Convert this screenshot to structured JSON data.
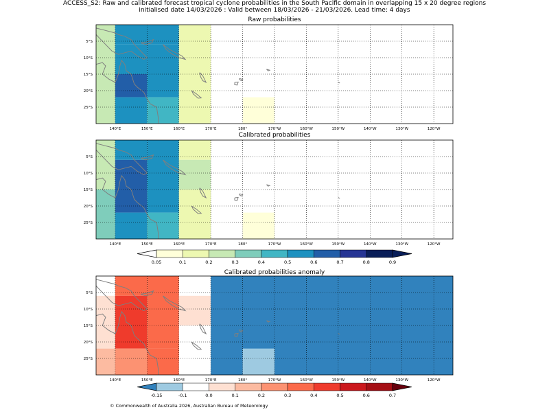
{
  "figure": {
    "title_line1": "ACCESS_S2: Raw and calibrated forecast tropical cyclone probabilities in the South Pacific domain in overlapping 15 x 20 degree regions",
    "title_line2": "initialised date 14/03/2026 :  Valid between 18/03/2026 - 21/03/2026. Lead time: 4 days",
    "copyright": "© Commonwealth of Australia 2026, Australian Bureau of Meteorology"
  },
  "chart_data": [
    {
      "type": "heatmap",
      "title": "Raw probabilities",
      "xlim": [
        134,
        246
      ],
      "ylim": [
        -30,
        0
      ],
      "grid": true,
      "x_tick_values": [
        140,
        150,
        160,
        170,
        180,
        190,
        200,
        210,
        220,
        230,
        240
      ],
      "x_tick_labels": [
        "140°E",
        "150°E",
        "160°E",
        "170°E",
        "180°",
        "170°W",
        "160°W",
        "150°W",
        "140°W",
        "130°W",
        "120°W"
      ],
      "y_tick_values": [
        -5,
        -10,
        -15,
        -20,
        -25
      ],
      "y_tick_labels": [
        "5°S",
        "10°S",
        "15°S",
        "20°S",
        "25°S"
      ],
      "cells": [
        {
          "lon": [
            134,
            140
          ],
          "lat": [
            -30,
            0
          ],
          "value": 0.25
        },
        {
          "lon": [
            140,
            160
          ],
          "lat": [
            -6,
            0
          ],
          "value": 0.5
        },
        {
          "lon": [
            140,
            150
          ],
          "lat": [
            -15,
            -6
          ],
          "value": 0.55
        },
        {
          "lon": [
            140,
            150
          ],
          "lat": [
            -22,
            -15
          ],
          "value": 0.65
        },
        {
          "lon": [
            140,
            150
          ],
          "lat": [
            -30,
            -22
          ],
          "value": 0.55
        },
        {
          "lon": [
            150,
            160
          ],
          "lat": [
            -22,
            -6
          ],
          "value": 0.55
        },
        {
          "lon": [
            150,
            160
          ],
          "lat": [
            -30,
            -22
          ],
          "value": 0.45
        },
        {
          "lon": [
            160,
            170
          ],
          "lat": [
            -30,
            0
          ],
          "value": 0.15
        },
        {
          "lon": [
            180,
            190
          ],
          "lat": [
            -30,
            -22
          ],
          "value": 0.07
        }
      ]
    },
    {
      "type": "heatmap",
      "title": "Calibrated probabilities",
      "xlim": [
        134,
        246
      ],
      "ylim": [
        -30,
        0
      ],
      "grid": true,
      "x_tick_values": [
        140,
        150,
        160,
        170,
        180,
        190,
        200,
        210,
        220,
        230,
        240
      ],
      "x_tick_labels": [
        "140°E",
        "150°E",
        "160°E",
        "170°E",
        "180°",
        "170°W",
        "160°W",
        "150°W",
        "140°W",
        "130°W",
        "120°W"
      ],
      "y_tick_values": [
        -5,
        -10,
        -15,
        -20,
        -25
      ],
      "y_tick_labels": [
        "5°S",
        "10°S",
        "15°S",
        "20°S",
        "25°S"
      ],
      "cells": [
        {
          "lon": [
            134,
            140
          ],
          "lat": [
            -15,
            0
          ],
          "value": 0.25
        },
        {
          "lon": [
            134,
            140
          ],
          "lat": [
            -30,
            -15
          ],
          "value": 0.35
        },
        {
          "lon": [
            140,
            150
          ],
          "lat": [
            -6,
            0
          ],
          "value": 0.55
        },
        {
          "lon": [
            140,
            150
          ],
          "lat": [
            -22,
            -6
          ],
          "value": 0.65
        },
        {
          "lon": [
            140,
            150
          ],
          "lat": [
            -30,
            -22
          ],
          "value": 0.55
        },
        {
          "lon": [
            150,
            160
          ],
          "lat": [
            -22,
            0
          ],
          "value": 0.55
        },
        {
          "lon": [
            150,
            160
          ],
          "lat": [
            -30,
            -22
          ],
          "value": 0.45
        },
        {
          "lon": [
            160,
            170
          ],
          "lat": [
            -6,
            0
          ],
          "value": 0.15
        },
        {
          "lon": [
            160,
            170
          ],
          "lat": [
            -15,
            -6
          ],
          "value": 0.25
        },
        {
          "lon": [
            160,
            170
          ],
          "lat": [
            -30,
            -15
          ],
          "value": 0.15
        },
        {
          "lon": [
            180,
            190
          ],
          "lat": [
            -30,
            -22
          ],
          "value": 0.07
        }
      ],
      "colorbar": {
        "ticks": [
          "0.05",
          "0.1",
          "0.2",
          "0.3",
          "0.4",
          "0.5",
          "0.6",
          "0.7",
          "0.8",
          "0.9"
        ],
        "colors": [
          "#ffffd9",
          "#edf8b1",
          "#c7e9b4",
          "#7fcdbb",
          "#41b6c4",
          "#1d91c0",
          "#225ea8",
          "#253494",
          "#081d58"
        ],
        "under_color": "#ffffff",
        "over_color": "#081d58"
      }
    },
    {
      "type": "heatmap",
      "title": "Calibrated probabilities anomaly",
      "xlim": [
        134,
        246
      ],
      "ylim": [
        -30,
        0
      ],
      "grid": true,
      "x_tick_values": [
        140,
        150,
        160,
        170,
        180,
        190,
        200,
        210,
        220,
        230,
        240
      ],
      "x_tick_labels": [
        "140°E",
        "150°E",
        "160°E",
        "170°E",
        "180°",
        "170°W",
        "160°W",
        "150°W",
        "140°W",
        "130°W",
        "120°W"
      ],
      "y_tick_values": [
        -5,
        -10,
        -15,
        -20,
        -25
      ],
      "y_tick_labels": [
        "5°S",
        "10°S",
        "15°S",
        "20°S",
        "25°S"
      ],
      "cells": [
        {
          "lon": [
            134,
            140
          ],
          "lat": [
            -30,
            -22
          ],
          "value": 0.15
        },
        {
          "lon": [
            134,
            140
          ],
          "lat": [
            -22,
            -15
          ],
          "value": 0.05
        },
        {
          "lon": [
            134,
            140
          ],
          "lat": [
            -15,
            -6
          ],
          "value": 0.05
        },
        {
          "lon": [
            140,
            150
          ],
          "lat": [
            -6,
            0
          ],
          "value": 0.35
        },
        {
          "lon": [
            140,
            150
          ],
          "lat": [
            -22,
            -6
          ],
          "value": 0.45
        },
        {
          "lon": [
            140,
            150
          ],
          "lat": [
            -30,
            -22
          ],
          "value": 0.25
        },
        {
          "lon": [
            150,
            160
          ],
          "lat": [
            -22,
            0
          ],
          "value": 0.35
        },
        {
          "lon": [
            150,
            160
          ],
          "lat": [
            -30,
            -22
          ],
          "value": 0.35
        },
        {
          "lon": [
            160,
            170
          ],
          "lat": [
            -15,
            -6
          ],
          "value": 0.05
        },
        {
          "lon": [
            170,
            246
          ],
          "lat": [
            -30,
            0
          ],
          "value": -0.2
        },
        {
          "lon": [
            180,
            190
          ],
          "lat": [
            -30,
            -22
          ],
          "value": -0.12
        }
      ],
      "colorbar": {
        "ticks": [
          "-0.15",
          "-0.1",
          "0.0",
          "0.1",
          "0.2",
          "0.3",
          "0.4",
          "0.5",
          "0.6",
          "0.7"
        ],
        "colors": [
          "#9ecae1",
          "#ffffff",
          "#fee0d2",
          "#fcbba1",
          "#fc9272",
          "#fb6a4a",
          "#ef3b2c",
          "#cb181d",
          "#a50f15"
        ],
        "under_color": "#3182bd",
        "over_color": "#67000d"
      }
    }
  ]
}
